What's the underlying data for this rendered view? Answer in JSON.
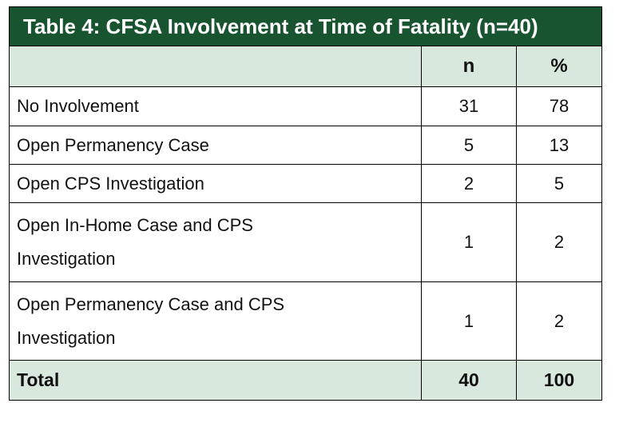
{
  "table": {
    "title": "Table 4: CFSA Involvement at Time of Fatality (n=40)",
    "columns": {
      "label": "",
      "n": "n",
      "pct": "%"
    },
    "rows": [
      {
        "label": "No Involvement",
        "n": "31",
        "pct": "78"
      },
      {
        "label": "Open Permanency Case",
        "n": "5",
        "pct": "13"
      },
      {
        "label": "Open CPS Investigation",
        "n": "2",
        "pct": "5"
      },
      {
        "label": "Open In-Home Case and CPS\nInvestigation",
        "n": "1",
        "pct": "2"
      },
      {
        "label": "Open Permanency Case and CPS\nInvestigation",
        "n": "1",
        "pct": "2"
      }
    ],
    "total": {
      "label": "Total",
      "n": "40",
      "pct": "100"
    },
    "colors": {
      "title_bar_bg": "#17542f",
      "title_text": "#ffffff",
      "shaded_row_bg": "#d8e8dd",
      "grid_border": "#000000",
      "body_text": "#111111"
    }
  }
}
